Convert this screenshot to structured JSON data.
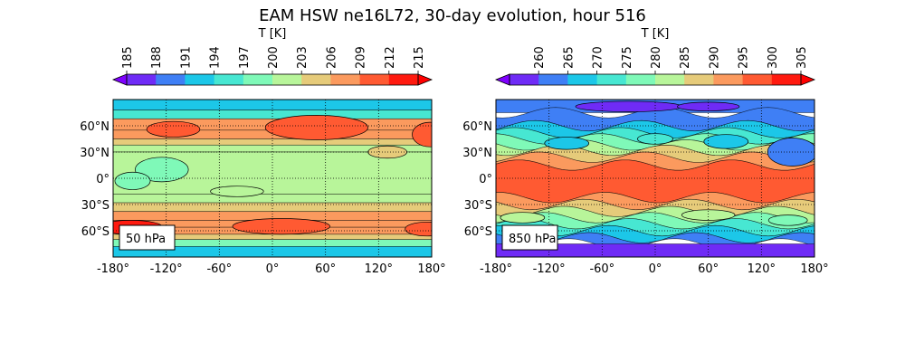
{
  "title": "EAM HSW ne16L72, 30-day evolution, hour 516",
  "colormap": [
    "#6f2bf6",
    "#3f7ff5",
    "#1cc7e8",
    "#47e7d2",
    "#7ff9b8",
    "#b8f59a",
    "#e6cb7a",
    "#fb9a5e",
    "#ff5a32",
    "#ff1a0f"
  ],
  "chart_data": [
    {
      "type": "heatmap",
      "panel_label": "50 hPa",
      "colorbar": {
        "label": "T [K]",
        "ticks": [
          "185",
          "188",
          "191",
          "194",
          "197",
          "200",
          "203",
          "206",
          "209",
          "212",
          "215"
        ],
        "range": [
          185,
          215
        ],
        "extend": "both",
        "under_color": "#7f00ff",
        "over_color": "#ff0000"
      },
      "x_ticks": [
        "-180°",
        "-120°",
        "-60°",
        "0°",
        "60°",
        "120°",
        "180°"
      ],
      "y_ticks": [
        "60°N",
        "30°N",
        "0°",
        "30°S",
        "60°S"
      ],
      "xlim": [
        -180,
        180
      ],
      "ylim": [
        -90,
        90
      ],
      "grid": true,
      "bands": [
        {
          "lat": [
            78,
            90
          ],
          "value": 193.0
        },
        {
          "lat": [
            68,
            78
          ],
          "value": 196.5
        },
        {
          "lat": [
            55,
            68
          ],
          "value": 208.0
        },
        {
          "lat": [
            45,
            55
          ],
          "value": 206.5
        },
        {
          "lat": [
            38,
            45
          ],
          "value": 204.5
        },
        {
          "lat": [
            30,
            38
          ],
          "value": 202.5
        },
        {
          "lat": [
            -18,
            30
          ],
          "value": 200.5
        },
        {
          "lat": [
            -28,
            -18
          ],
          "value": 202.0
        },
        {
          "lat": [
            -38,
            -28
          ],
          "value": 203.5
        },
        {
          "lat": [
            -48,
            -38
          ],
          "value": 206.0
        },
        {
          "lat": [
            -56,
            -48
          ],
          "value": 208.0
        },
        {
          "lat": [
            -64,
            -56
          ],
          "value": 206.5
        },
        {
          "lat": [
            -70,
            -64
          ],
          "value": 203.0
        },
        {
          "lat": [
            -78,
            -70
          ],
          "value": 198.5
        },
        {
          "lat": [
            -90,
            -78
          ],
          "value": 193.0
        }
      ],
      "blobs": [
        {
          "lon": 60,
          "lat": 59,
          "rlon": 40,
          "rlat": 9,
          "value": 213.5
        },
        {
          "lon": 50,
          "lat": 58,
          "rlon": 58,
          "rlat": 14,
          "value": 210.5
        },
        {
          "lon": -112,
          "lat": 56,
          "rlon": 30,
          "rlat": 9,
          "value": 210.5
        },
        {
          "lon": 178,
          "lat": 50,
          "rlon": 20,
          "rlat": 14,
          "value": 210.0
        },
        {
          "lon": -160,
          "lat": -56,
          "rlon": 36,
          "rlat": 8,
          "value": 213.0
        },
        {
          "lon": 10,
          "lat": -55,
          "rlon": 55,
          "rlat": 9,
          "value": 210.5
        },
        {
          "lon": 175,
          "lat": -58,
          "rlon": 25,
          "rlat": 8,
          "value": 211.0
        },
        {
          "lon": -125,
          "lat": 10,
          "rlon": 30,
          "rlat": 14,
          "value": 198.5
        },
        {
          "lon": -158,
          "lat": -3,
          "rlon": 20,
          "rlat": 10,
          "value": 198.5
        },
        {
          "lon": 130,
          "lat": 30,
          "rlon": 22,
          "rlat": 7,
          "value": 203.0
        },
        {
          "lon": -40,
          "lat": -15,
          "rlon": 30,
          "rlat": 6,
          "value": 201.5
        }
      ]
    },
    {
      "type": "heatmap",
      "panel_label": "850 hPa",
      "colorbar": {
        "label": "T [K]",
        "ticks": [
          "260",
          "265",
          "270",
          "275",
          "280",
          "285",
          "290",
          "295",
          "300",
          "305"
        ],
        "range": [
          255,
          305
        ],
        "extend": "both",
        "under_color": "#7f00ff",
        "over_color": "#ff0000"
      },
      "x_ticks": [
        "-180°",
        "-120°",
        "-60°",
        "0°",
        "60°",
        "120°",
        "180°"
      ],
      "y_ticks": [
        "60°N",
        "30°N",
        "0°",
        "30°S",
        "60°S"
      ],
      "xlim": [
        -180,
        180
      ],
      "ylim": [
        -90,
        90
      ],
      "grid": true,
      "bands": [
        {
          "lat": [
            75,
            90
          ],
          "value": 262.0
        },
        {
          "lat": [
            60,
            75
          ],
          "value": 264.0
        },
        {
          "lat": [
            52,
            60
          ],
          "value": 268.5
        },
        {
          "lat": [
            45,
            52
          ],
          "value": 273.0
        },
        {
          "lat": [
            38,
            45
          ],
          "value": 278.0
        },
        {
          "lat": [
            32,
            38
          ],
          "value": 283.0
        },
        {
          "lat": [
            24,
            32
          ],
          "value": 288.0
        },
        {
          "lat": [
            15,
            24
          ],
          "value": 293.0
        },
        {
          "lat": [
            -22,
            15
          ],
          "value": 298.0
        },
        {
          "lat": [
            -30,
            -22
          ],
          "value": 293.0
        },
        {
          "lat": [
            -38,
            -30
          ],
          "value": 288.0
        },
        {
          "lat": [
            -45,
            -38
          ],
          "value": 283.0
        },
        {
          "lat": [
            -52,
            -45
          ],
          "value": 278.0
        },
        {
          "lat": [
            -60,
            -52
          ],
          "value": 273.0
        },
        {
          "lat": [
            -68,
            -60
          ],
          "value": 268.5
        },
        {
          "lat": [
            -75,
            -68
          ],
          "value": 264.0
        },
        {
          "lat": [
            -90,
            -75
          ],
          "value": 257.0
        }
      ],
      "blobs": [
        {
          "lon": -30,
          "lat": 82,
          "rlon": 60,
          "rlat": 6,
          "value": 257.0
        },
        {
          "lon": 60,
          "lat": 82,
          "rlon": 35,
          "rlat": 5,
          "value": 257.0
        },
        {
          "lon": 155,
          "lat": 30,
          "rlon": 28,
          "rlat": 16,
          "value": 262.0
        },
        {
          "lon": 80,
          "lat": 42,
          "rlon": 25,
          "rlat": 8,
          "value": 266.0
        },
        {
          "lon": -100,
          "lat": 40,
          "rlon": 25,
          "rlat": 7,
          "value": 268.0
        },
        {
          "lon": 0,
          "lat": 45,
          "rlon": 20,
          "rlat": 6,
          "value": 270.0
        },
        {
          "lon": -150,
          "lat": -45,
          "rlon": 25,
          "rlat": 6,
          "value": 280.0
        },
        {
          "lon": 60,
          "lat": -42,
          "rlon": 30,
          "rlat": 6,
          "value": 281.0
        },
        {
          "lon": 150,
          "lat": -48,
          "rlon": 22,
          "rlat": 6,
          "value": 279.0
        }
      ],
      "wave": {
        "amp": 6,
        "k": 3
      }
    }
  ]
}
